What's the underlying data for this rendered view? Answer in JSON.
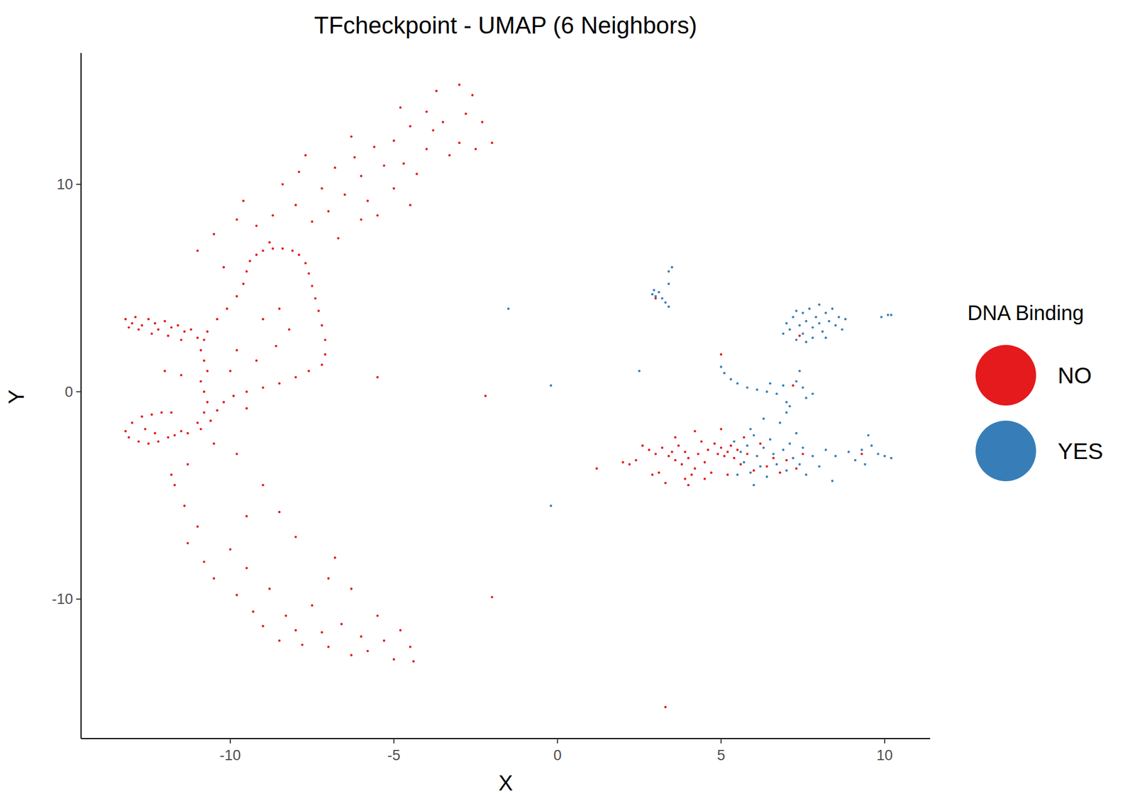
{
  "chart_data": {
    "type": "scatter",
    "title": "TFcheckpoint - UMAP (6 Neighbors)",
    "x_label": "X",
    "y_label": "Y",
    "legend_title": "DNA Binding",
    "legend": "right",
    "grid": false,
    "marker": "circle",
    "xlim": [
      -14.56,
      11.39
    ],
    "ylim": [
      -16.72,
      16.33
    ],
    "xticks": [
      -10,
      -5,
      0,
      5,
      10
    ],
    "yticks": [
      -10,
      0,
      10
    ],
    "series": [
      {
        "name": "NO",
        "color": "#E41A1C",
        "x": [
          -13.2,
          -13,
          -12.9,
          -12.7,
          -12.5,
          -12.3,
          -12.2,
          -12,
          -11.8,
          -11.6,
          -11.4,
          -11.2,
          -11,
          -12.8,
          -13.1,
          -12.4,
          -11.9,
          -11.5,
          -10.7,
          -10.4,
          -10.1,
          -9.8,
          -9.6,
          -9.5,
          -9.4,
          -9.2,
          -9,
          -8.7,
          -8.4,
          -8.1,
          -7.9,
          -7.7,
          -7.6,
          -7.5,
          -7.4,
          -7.3,
          -7.2,
          -7.1,
          -7.1,
          -7.2,
          -7.6,
          -8.0,
          -8.5,
          -9.0,
          -9.5,
          -9.9,
          -10.2,
          -10.4,
          -10.6,
          -10.9,
          -11.3,
          -11.7,
          -12.1,
          -11.8,
          -10.8,
          -10.9,
          -10.8,
          -10.7,
          -10.9,
          -10.8,
          -10.7,
          -10.8,
          -11.0,
          -12.4,
          -12.7,
          -13.0,
          -13.2,
          -13.1,
          -12.8,
          -12.5,
          -12.2,
          -11.9,
          -11.5,
          -12.6,
          -12.3,
          -9.8,
          -9.2,
          -8.6,
          -8.2,
          -9.0,
          -8.5,
          -10.0,
          -9.5,
          -10.5,
          -9.8,
          -11.5,
          -12.0,
          -11.3,
          -11.8,
          -10.5,
          -11,
          -10.2,
          -9.6,
          -9.2,
          -8.7,
          -8.4,
          -8,
          -7.5,
          -7.9,
          -7.2,
          -7.0,
          -6.8,
          -6.5,
          -6.2,
          -6.0,
          -5.8,
          -5.6,
          -5.3,
          -5.0,
          -5.0,
          -4.7,
          -4.5,
          -4.3,
          -4.0,
          -4.0,
          -3.8,
          -3.5,
          -3.3,
          -3.0,
          -3.0,
          -2.8,
          -2.6,
          -2.5,
          -2.3,
          -2.0,
          -3.7,
          -4.8,
          -6.7,
          -6.0,
          -5.5,
          -4.5,
          -6.3,
          -7.7,
          -8.8,
          -9.8,
          -11.7,
          -11.4,
          -11.0,
          -11.3,
          -10.8,
          -10.5,
          -10.0,
          -9.8,
          -9.5,
          -9.3,
          -9.0,
          -8.8,
          -8.5,
          -8.3,
          -8.0,
          -7.8,
          -7.5,
          -7.2,
          -7.0,
          -6.8,
          -6.6,
          -6.3,
          -6.0,
          -5.8,
          -5.5,
          -5.3,
          -5.0,
          -4.8,
          -4.5,
          -4.4,
          -7.0,
          -8.0,
          -8.5,
          -9.0,
          -9.5,
          -6.3,
          -5.5,
          -2.2,
          -2.0,
          3.3,
          1.2,
          2.0,
          2.2,
          2.4,
          2.6,
          2.8,
          3.0,
          3.2,
          3.4,
          3.5,
          3.6,
          3.7,
          3.8,
          3.9,
          4.0,
          4.1,
          4.0,
          3.9,
          4.2,
          4.3,
          4.4,
          4.5,
          4.6,
          4.7,
          4.8,
          4.9,
          5.0,
          5.0,
          5.1,
          5.2,
          5.3,
          5.4,
          5.5,
          5.6,
          5.7,
          5.8,
          6.0,
          6.2,
          6.4,
          6.6,
          6.8,
          7.0,
          7.3,
          7.5,
          3.1,
          2.9,
          3.3,
          4.5,
          5.2,
          3.6,
          4.2,
          5.0,
          7.4,
          7.2,
          3.0,
          9.3
        ],
        "values": [
          3.5,
          3.3,
          3.6,
          3.2,
          3.5,
          3.3,
          3.0,
          3.4,
          3.1,
          3.2,
          2.9,
          3.0,
          2.6,
          3.0,
          3.1,
          2.8,
          2.7,
          2.5,
          2.9,
          3.5,
          4.0,
          4.6,
          5.2,
          5.8,
          6.3,
          6.6,
          6.8,
          6.9,
          6.9,
          6.8,
          6.6,
          6.2,
          5.7,
          5.1,
          4.5,
          3.9,
          3.2,
          2.5,
          1.8,
          1.3,
          1.0,
          0.7,
          0.4,
          0.2,
          0.0,
          -0.2,
          -0.5,
          -0.9,
          -1.4,
          -1.8,
          -2.0,
          -2.1,
          -1.0,
          -1.0,
          2.5,
          2.0,
          1.5,
          1.0,
          0.5,
          0.0,
          -0.5,
          -1.0,
          -1.5,
          -1.1,
          -1.2,
          -1.5,
          -1.9,
          -2.2,
          -2.4,
          -2.5,
          -2.4,
          -2.2,
          -1.9,
          -1.8,
          -2.0,
          2.0,
          1.5,
          2.2,
          3.0,
          3.5,
          4.0,
          1.0,
          -0.8,
          -2.5,
          -3.0,
          0.8,
          1.0,
          -3.5,
          -4.0,
          7.6,
          6.8,
          6.0,
          9.2,
          8.0,
          8.5,
          10.0,
          9.0,
          8.2,
          10.6,
          9.8,
          8.7,
          10.8,
          9.5,
          11.3,
          10.4,
          9.2,
          11.8,
          10.9,
          12.1,
          9.8,
          11.0,
          12.8,
          10.5,
          13.5,
          11.7,
          12.6,
          13.0,
          11.4,
          14.8,
          12.0,
          13.4,
          14.3,
          11.7,
          13.0,
          12.0,
          14.5,
          13.7,
          7.4,
          8.3,
          8.5,
          9.0,
          12.3,
          11.4,
          7.2,
          8.3,
          -4.5,
          -5.5,
          -6.5,
          -7.3,
          -8.2,
          -9.0,
          -7.6,
          -9.8,
          -8.5,
          -10.6,
          -11.3,
          -9.5,
          -12.0,
          -10.8,
          -11.5,
          -12.2,
          -10.3,
          -11.6,
          -12.3,
          -8.0,
          -11.2,
          -12.7,
          -11.8,
          -12.5,
          -10.8,
          -12.0,
          -12.9,
          -11.5,
          -12.3,
          -13.0,
          -9.0,
          -7.0,
          -5.8,
          -4.5,
          -6.0,
          -9.5,
          0.7,
          -0.2,
          -9.9,
          -15.2,
          -3.7,
          -3.4,
          -3.5,
          -3.3,
          -2.6,
          -2.8,
          -3.0,
          -2.7,
          -3.1,
          -2.9,
          -3.3,
          -2.6,
          -3.5,
          -2.9,
          -3.2,
          -4.0,
          -4.5,
          -4.2,
          -3.7,
          -3.0,
          -2.4,
          -3.4,
          -2.8,
          -3.9,
          -2.5,
          -3.0,
          -2.7,
          -1.8,
          -3.1,
          -2.9,
          -2.6,
          -3.2,
          -2.8,
          -3.5,
          -2.2,
          -3.0,
          -3.8,
          -2.5,
          -3.6,
          -3.2,
          -3.9,
          -3.3,
          -3.7,
          -3.0,
          -3.9,
          -4.0,
          -4.4,
          -4.2,
          -4.0,
          -2.2,
          -1.9,
          1.8,
          2.7,
          0.3,
          4.5,
          -3.0
        ]
      },
      {
        "name": "YES",
        "color": "#377EB8",
        "x": [
          2.9,
          3.0,
          3.1,
          3.2,
          3.3,
          3.4,
          3.4,
          3.4,
          3.5,
          2.95,
          7.0,
          7.1,
          7.2,
          7.3,
          7.4,
          7.5,
          7.5,
          7.6,
          7.7,
          7.8,
          7.8,
          7.9,
          8.0,
          8.0,
          8.1,
          8.2,
          8.3,
          8.4,
          8.5,
          8.6,
          8.7,
          8.8,
          7.3,
          7.6,
          8.2,
          6.9,
          9.9,
          10.1,
          10.2,
          5.0,
          5.1,
          5.3,
          5.5,
          5.8,
          6.1,
          6.4,
          6.7,
          6.9,
          7.0,
          7.3,
          7.4,
          7.5,
          7.6,
          7.8,
          7.1,
          6.5,
          2.5,
          -1.5,
          -0.2,
          -0.2,
          5.4,
          5.6,
          5.7,
          5.8,
          5.9,
          6.0,
          6.1,
          6.2,
          6.3,
          6.4,
          6.5,
          6.6,
          6.7,
          6.8,
          6.9,
          7.0,
          7.1,
          7.2,
          7.3,
          7.4,
          7.5,
          7.6,
          7.8,
          8.0,
          8.2,
          8.5,
          8.4,
          5.5,
          6.0,
          5.9,
          6.3,
          7.0,
          9.3,
          9.5,
          9.6,
          9.8,
          10.0,
          10.2,
          9.1,
          8.9,
          9.4
        ],
        "values": [
          4.7,
          4.6,
          4.8,
          4.5,
          4.3,
          4.1,
          5.2,
          5.8,
          6.0,
          4.9,
          3.3,
          3.0,
          3.6,
          2.5,
          3.2,
          3.8,
          2.8,
          3.4,
          4.0,
          3.1,
          2.6,
          3.6,
          4.2,
          3.3,
          2.9,
          3.8,
          3.4,
          4.0,
          3.2,
          3.6,
          3.0,
          3.5,
          3.9,
          2.4,
          2.6,
          2.8,
          3.6,
          3.7,
          3.7,
          1.2,
          0.9,
          0.6,
          0.4,
          0.2,
          0.1,
          0.0,
          -0.1,
          0.3,
          -0.5,
          0.5,
          1.0,
          0.2,
          -0.3,
          -0.1,
          -0.7,
          0.4,
          1.0,
          4.0,
          0.3,
          -5.5,
          -2.4,
          -2.9,
          -3.4,
          -2.6,
          -3.9,
          -2.1,
          -3.1,
          -3.6,
          -2.7,
          -4.1,
          -2.3,
          -3.0,
          -3.5,
          -1.5,
          -2.8,
          -3.8,
          -2.5,
          -3.2,
          -2.0,
          -3.5,
          -2.7,
          -4.0,
          -3.1,
          -3.6,
          -2.8,
          -3.1,
          -4.3,
          -4.0,
          -4.5,
          -1.8,
          -1.3,
          -1.0,
          -2.8,
          -2.1,
          -2.6,
          -3.0,
          -3.1,
          -3.2,
          -3.3,
          -2.9,
          -3.5
        ]
      }
    ]
  }
}
